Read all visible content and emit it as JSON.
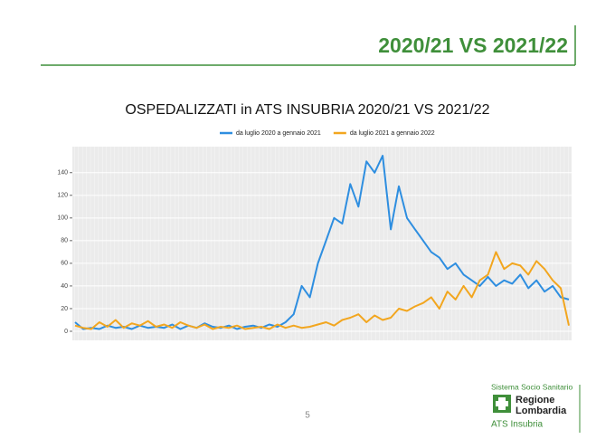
{
  "slide": {
    "header": "2020/21 VS 2021/22",
    "page_number": "5",
    "logo": {
      "system": "Sistema Socio Sanitario",
      "region_line1": "Regione",
      "region_line2": "Lombardia",
      "agency": "ATS Insubria"
    }
  },
  "chart_data": {
    "type": "line",
    "title": "OSPEDALIZZATI in ATS INSUBRIA  2020/21 VS 2021/22",
    "series": [
      {
        "name": "da luglio 2020 a gennaio 2021",
        "color": "#2e8ee0",
        "values": [
          8,
          2,
          3,
          2,
          5,
          3,
          4,
          2,
          5,
          3,
          4,
          3,
          6,
          2,
          5,
          3,
          7,
          4,
          3,
          5,
          2,
          4,
          5,
          3,
          6,
          4,
          8,
          15,
          40,
          30,
          60,
          80,
          100,
          95,
          130,
          110,
          150,
          140,
          155,
          90,
          128,
          100,
          90,
          80,
          70,
          65,
          55,
          60,
          50,
          45,
          40,
          48,
          40,
          45,
          42,
          50,
          38,
          45,
          35,
          40,
          30,
          28
        ]
      },
      {
        "name": "da luglio 2021 a gennaio 2022",
        "color": "#f2a61f",
        "values": [
          5,
          3,
          2,
          8,
          4,
          10,
          3,
          7,
          5,
          9,
          4,
          6,
          3,
          8,
          5,
          3,
          6,
          2,
          4,
          3,
          5,
          2,
          3,
          4,
          2,
          6,
          3,
          5,
          3,
          4,
          6,
          8,
          5,
          10,
          12,
          15,
          8,
          14,
          10,
          12,
          20,
          18,
          22,
          25,
          30,
          20,
          35,
          28,
          40,
          30,
          45,
          50,
          70,
          55,
          60,
          58,
          50,
          62,
          55,
          45,
          38,
          5
        ]
      }
    ],
    "ylim": [
      -8,
      163
    ],
    "yticks": [
      0,
      20,
      40,
      60,
      80,
      100,
      120,
      140
    ],
    "grid": true,
    "legend": "top"
  }
}
